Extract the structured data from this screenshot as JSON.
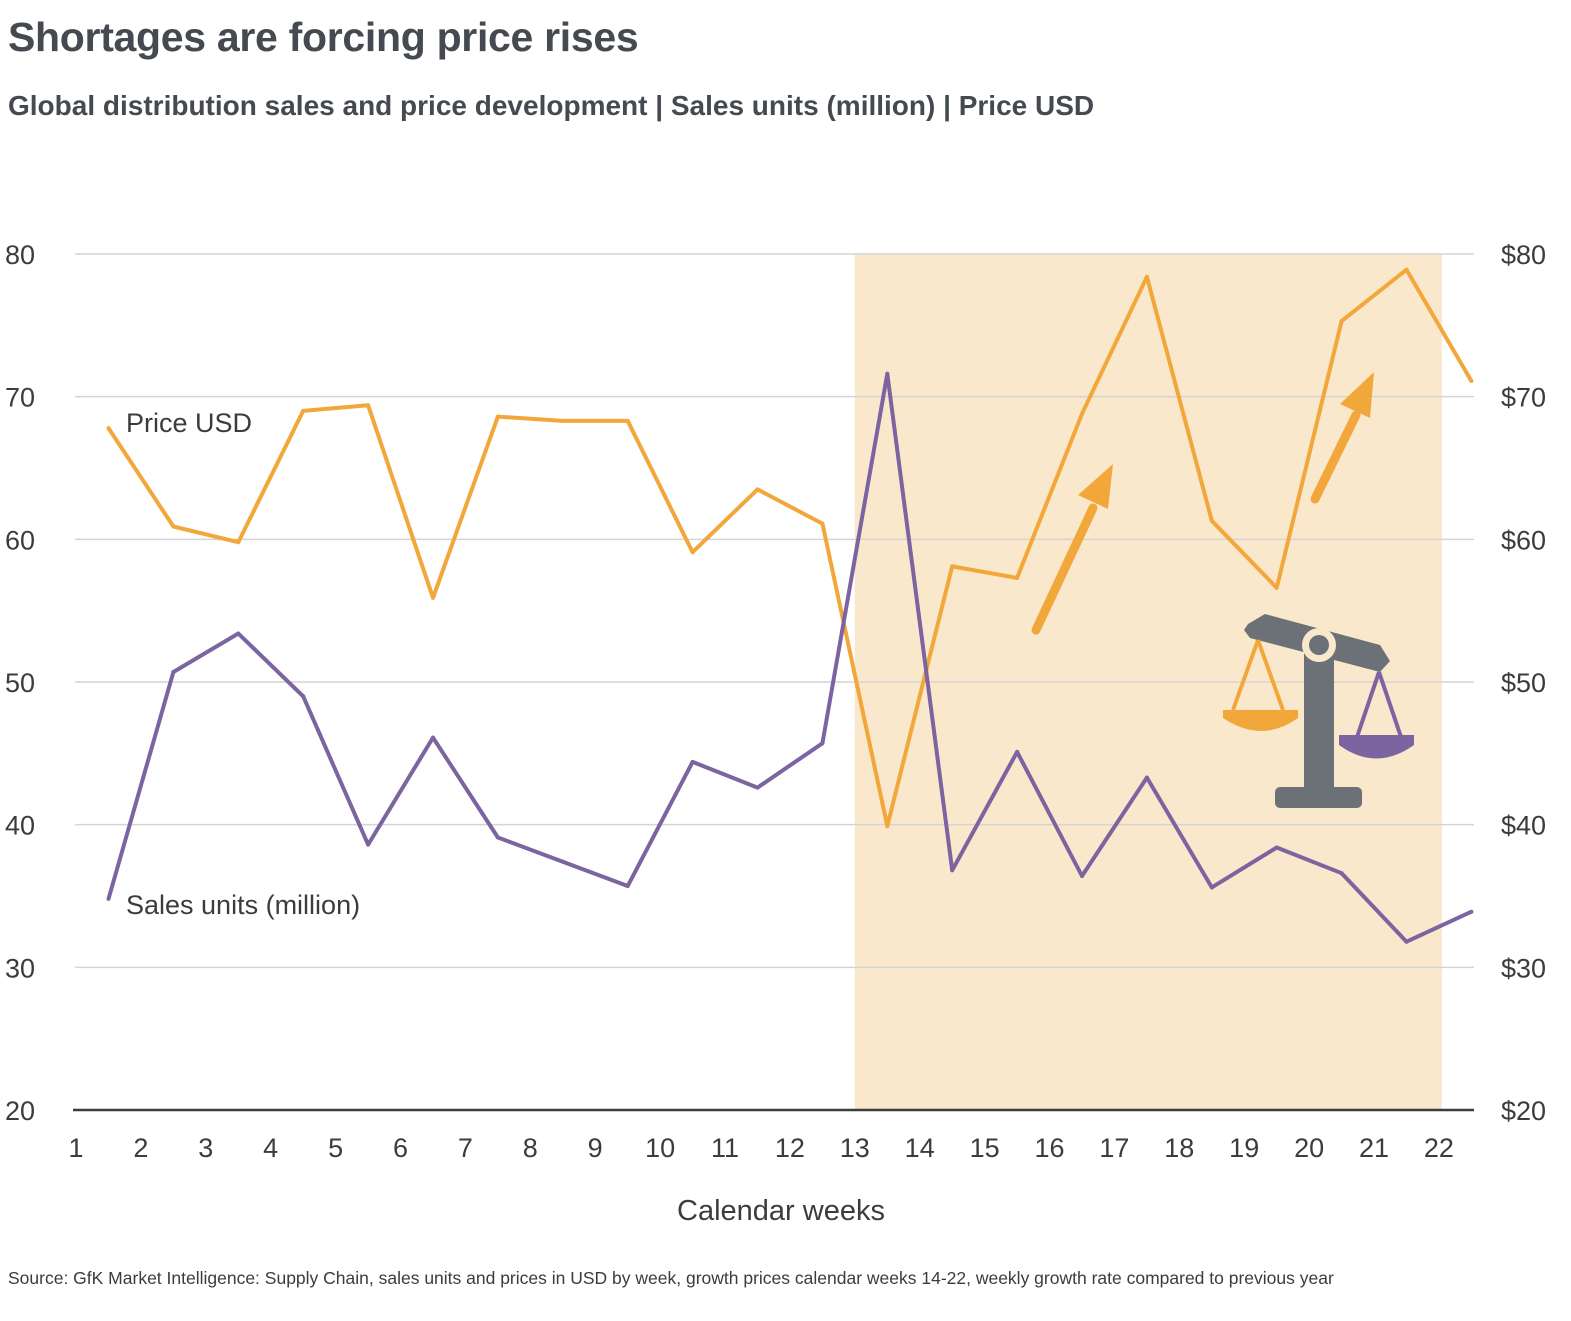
{
  "title": "Shortages are forcing price rises",
  "subtitle": "Global distribution sales and price development | Sales units (million) | Price USD",
  "source": "Source: GfK Market Intelligence: Supply Chain, sales units and prices in USD by week, growth prices calendar weeks 14-22, weekly growth rate compared to previous year",
  "colors": {
    "price": "#f2a73b",
    "sales": "#7b64a0",
    "highlight": "#fae8cc",
    "grid": "#d4d4d4",
    "axis": "#3c3c3c",
    "scale_icon": "#6c7178"
  },
  "icons": [
    "arrow-up-icon",
    "balance-scale-icon"
  ],
  "chart_data": {
    "type": "line",
    "x": [
      1,
      2,
      3,
      4,
      5,
      6,
      7,
      8,
      9,
      10,
      11,
      12,
      13,
      14,
      15,
      16,
      17,
      18,
      19,
      20,
      21,
      22
    ],
    "xlabel": "Calendar weeks",
    "ylim": [
      20,
      80
    ],
    "yticks_left": [
      "20",
      "30",
      "40",
      "50",
      "60",
      "70",
      "80"
    ],
    "yticks_right": [
      "$20",
      "$30",
      "$40",
      "$50",
      "$60",
      "$70",
      "$80"
    ],
    "grid": true,
    "highlight_region": {
      "from_week": 13,
      "to_week": 22
    },
    "series": [
      {
        "name": "Price USD",
        "axis": "right",
        "points": [
          [
            1.5,
            67.8
          ],
          [
            2.5,
            60.9
          ],
          [
            3.5,
            59.8
          ],
          [
            4.5,
            69.0
          ],
          [
            5.5,
            69.4
          ],
          [
            6.5,
            55.9
          ],
          [
            7.5,
            68.6
          ],
          [
            8.5,
            68.3
          ],
          [
            9.5,
            68.3
          ],
          [
            10.5,
            59.1
          ],
          [
            11.5,
            63.5
          ],
          [
            12.5,
            61.1
          ],
          [
            13.5,
            39.9
          ],
          [
            14.5,
            58.1
          ],
          [
            15.5,
            57.3
          ],
          [
            16.5,
            68.8
          ],
          [
            17.5,
            78.4
          ],
          [
            18.5,
            61.3
          ],
          [
            19.5,
            56.6
          ],
          [
            20.5,
            75.3
          ],
          [
            21.5,
            78.9
          ],
          [
            22.5,
            71.1
          ]
        ]
      },
      {
        "name": "Sales units (million)",
        "axis": "left",
        "points": [
          [
            1.5,
            34.8
          ],
          [
            2.5,
            50.7
          ],
          [
            3.5,
            53.4
          ],
          [
            4.5,
            49.0
          ],
          [
            5.5,
            38.6
          ],
          [
            6.5,
            46.1
          ],
          [
            7.5,
            39.1
          ],
          [
            8.5,
            37.4
          ],
          [
            9.5,
            35.7
          ],
          [
            10.5,
            44.4
          ],
          [
            11.5,
            42.6
          ],
          [
            12.5,
            45.7
          ],
          [
            13.5,
            71.6
          ],
          [
            14.5,
            36.8
          ],
          [
            15.5,
            45.1
          ],
          [
            16.5,
            36.4
          ],
          [
            17.5,
            43.3
          ],
          [
            18.5,
            35.6
          ],
          [
            19.5,
            38.4
          ],
          [
            20.5,
            36.6
          ],
          [
            21.5,
            31.8
          ],
          [
            22.5,
            33.9
          ]
        ]
      }
    ]
  }
}
